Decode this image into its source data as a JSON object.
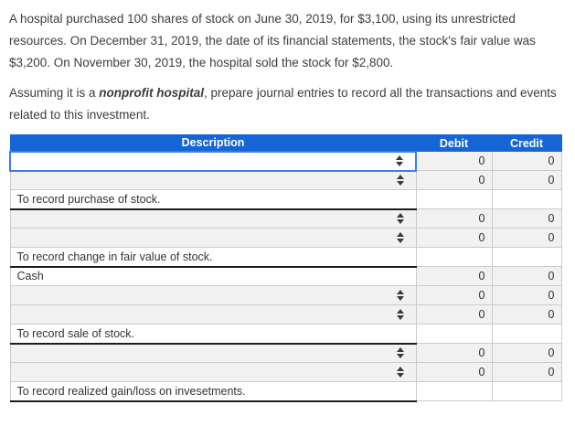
{
  "intro": {
    "paragraph1": "A hospital purchased 100 shares of stock on June 30, 2019, for $3,100, using its unrestricted resources. On December 31, 2019, the date of its financial statements, the stock's fair value was $3,200. On November 30, 2019, the hospital sold the stock for $2,800.",
    "paragraph2_prefix": "Assuming it is a ",
    "paragraph2_emphasis": "nonprofit hospital",
    "paragraph2_suffix": ", prepare journal entries to record all the transactions and events related to this investment."
  },
  "colors": {
    "header_blue": "#1565d8",
    "focus_border_blue": "#3d7de8",
    "row_gray": "#f1f1f1",
    "cell_border_gray": "#cbcbcb",
    "memo_underline_black": "#1c1c1c"
  },
  "table": {
    "headers": {
      "description": "Description",
      "debit": "Debit",
      "credit": "Credit"
    },
    "rows": [
      {
        "type": "select",
        "focused": true,
        "debit": "0",
        "credit": "0"
      },
      {
        "type": "select",
        "focused": false,
        "debit": "0",
        "credit": "0"
      },
      {
        "type": "memo",
        "text": "To record purchase of stock."
      },
      {
        "type": "select",
        "focused": false,
        "debit": "0",
        "credit": "0"
      },
      {
        "type": "select",
        "focused": false,
        "debit": "0",
        "credit": "0"
      },
      {
        "type": "memo",
        "text": "To record change in fair value of stock."
      },
      {
        "type": "text",
        "text": "Cash",
        "debit": "0",
        "credit": "0"
      },
      {
        "type": "select",
        "focused": false,
        "debit": "0",
        "credit": "0"
      },
      {
        "type": "select",
        "focused": false,
        "debit": "0",
        "credit": "0"
      },
      {
        "type": "memo",
        "text": "To record sale of stock."
      },
      {
        "type": "select",
        "focused": false,
        "debit": "0",
        "credit": "0"
      },
      {
        "type": "select",
        "focused": false,
        "debit": "0",
        "credit": "0"
      },
      {
        "type": "memo",
        "text": "To record realized gain/loss on invesetments."
      }
    ]
  }
}
